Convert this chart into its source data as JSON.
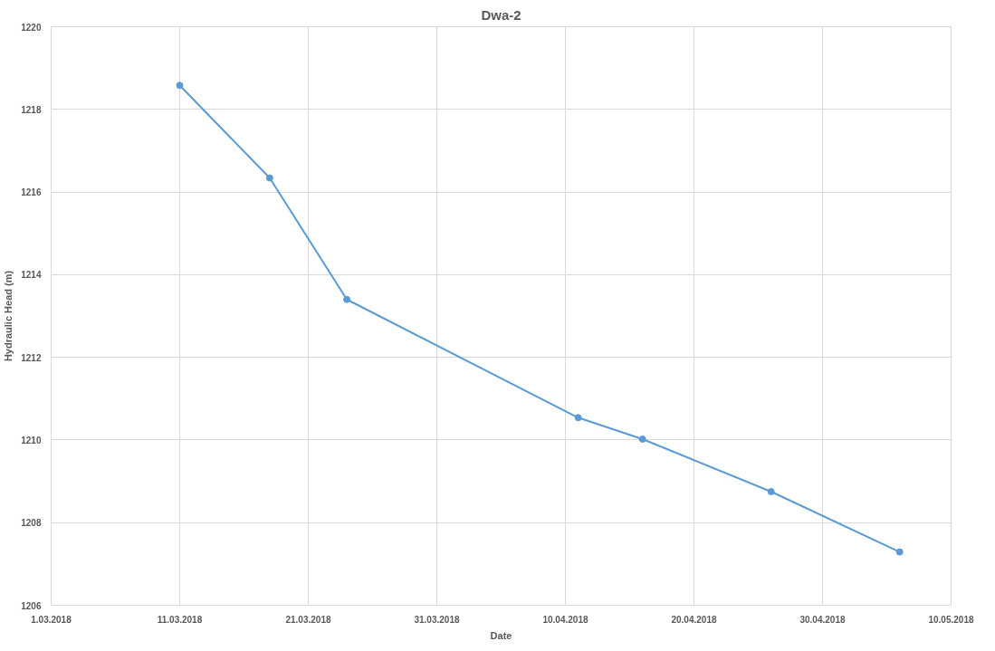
{
  "chart_data": {
    "type": "line",
    "title": "Dwa-2",
    "xlabel": "Date",
    "ylabel": "Hydraulic Head (m)",
    "x": [
      "2018-03-11",
      "2018-03-18",
      "2018-03-24",
      "2018-04-11",
      "2018-04-16",
      "2018-04-26",
      "2018-05-06"
    ],
    "series": [
      {
        "color": "#5b9bd5",
        "values": [
          1218.58,
          1216.34,
          1213.4,
          1210.54,
          1210.02,
          1208.75,
          1207.29
        ]
      }
    ],
    "xlim": [
      "2018-03-01",
      "2018-05-10"
    ],
    "xticks": [
      {
        "value": "2018-03-01",
        "label": "1.03.2018"
      },
      {
        "value": "2018-03-11",
        "label": "11.03.2018"
      },
      {
        "value": "2018-03-21",
        "label": "21.03.2018"
      },
      {
        "value": "2018-03-31",
        "label": "31.03.2018"
      },
      {
        "value": "2018-04-10",
        "label": "10.04.2018"
      },
      {
        "value": "2018-04-20",
        "label": "20.04.2018"
      },
      {
        "value": "2018-04-30",
        "label": "30.04.2018"
      },
      {
        "value": "2018-05-10",
        "label": "10.05.2018"
      }
    ],
    "ylim": [
      1206,
      1220
    ],
    "yticks": [
      1206,
      1208,
      1210,
      1212,
      1214,
      1216,
      1218,
      1220
    ],
    "grid": true,
    "marker": "circle",
    "line_style": "solid"
  }
}
